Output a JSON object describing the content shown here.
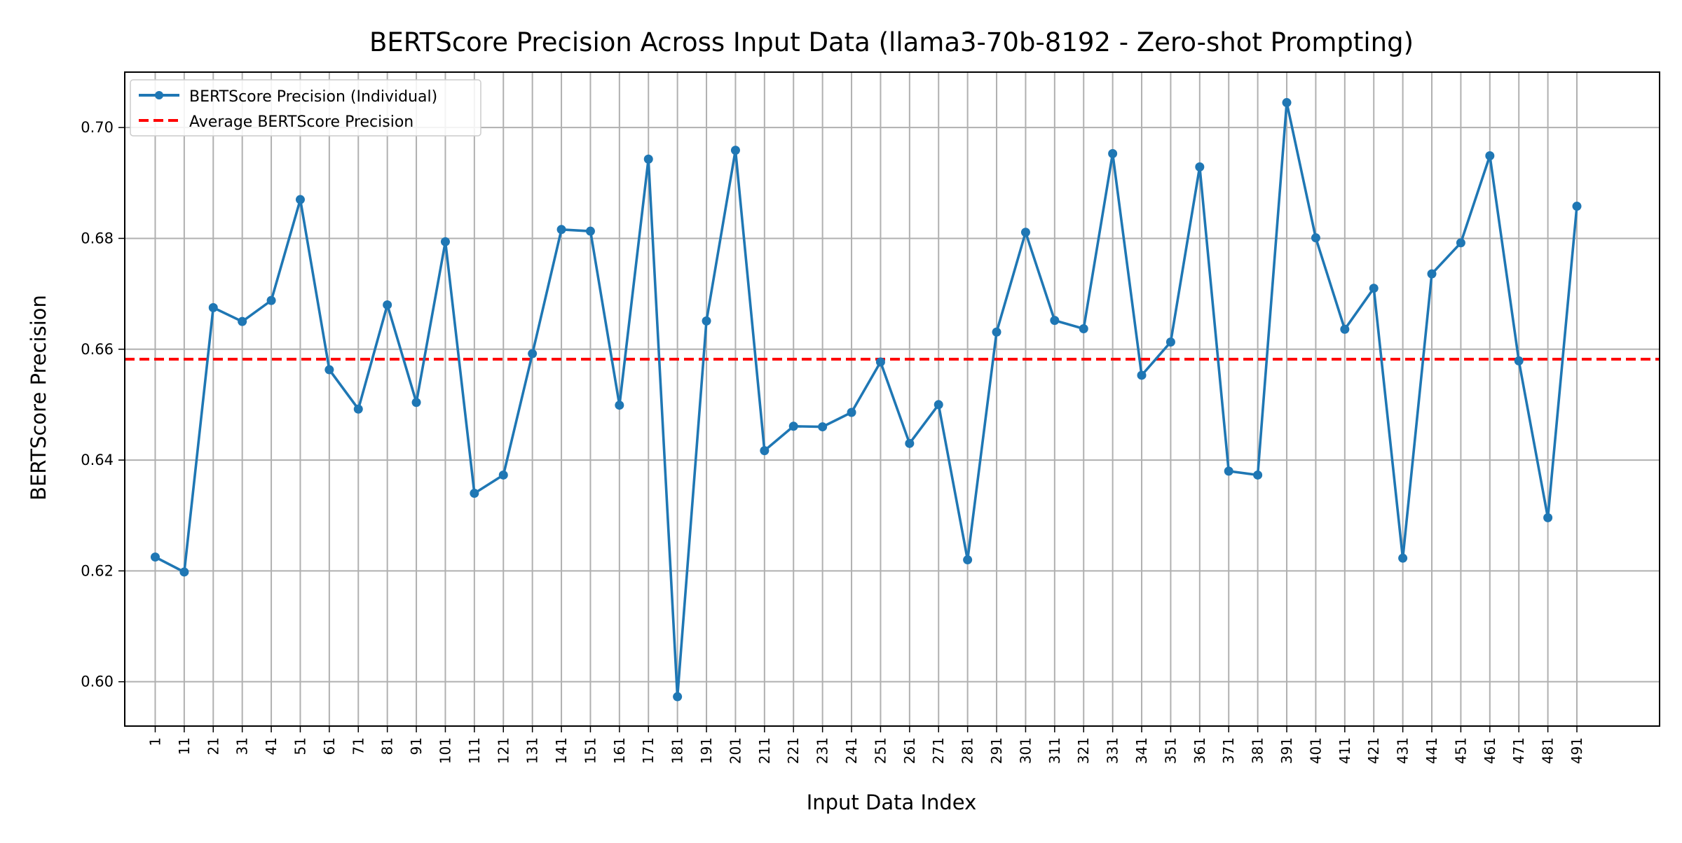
{
  "colors": {
    "series_line": "#1f77b4",
    "average_line": "#ff0000",
    "grid": "#b0b0b0",
    "axes": "#000000",
    "background": "#ffffff"
  },
  "chart_data": {
    "type": "line",
    "title": "BERTScore Precision Across Input Data (llama3-70b-8192 - Zero-shot Prompting)",
    "xlabel": "Input Data Index",
    "ylabel": "BERTScore Precision",
    "grid": true,
    "legend_position": "top-left",
    "xlim": [
      -9.5,
      519.5
    ],
    "ylim": [
      0.592,
      0.71
    ],
    "x_ticks": [
      1,
      11,
      21,
      31,
      41,
      51,
      61,
      71,
      81,
      91,
      101,
      111,
      121,
      131,
      141,
      151,
      161,
      171,
      181,
      191,
      201,
      211,
      221,
      231,
      241,
      251,
      261,
      271,
      281,
      291,
      301,
      311,
      321,
      331,
      341,
      351,
      361,
      371,
      381,
      391,
      401,
      411,
      421,
      431,
      441,
      451,
      461,
      471,
      481,
      491
    ],
    "y_ticks": [
      "0.60",
      "0.62",
      "0.64",
      "0.66",
      "0.68",
      "0.70"
    ],
    "series": [
      {
        "name": "BERTScore Precision (Individual)",
        "style": "line-with-markers",
        "x": [
          1,
          11,
          21,
          31,
          41,
          51,
          61,
          71,
          81,
          91,
          101,
          111,
          121,
          131,
          141,
          151,
          161,
          171,
          181,
          191,
          201,
          211,
          221,
          231,
          241,
          251,
          261,
          271,
          281,
          291,
          301,
          311,
          321,
          331,
          341,
          351,
          361,
          371,
          381,
          391,
          401,
          411,
          421,
          431,
          441,
          451,
          461,
          471,
          481,
          491
        ],
        "values": [
          0.6225,
          0.6198,
          0.6675,
          0.665,
          0.6688,
          0.687,
          0.6563,
          0.6492,
          0.668,
          0.6504,
          0.6794,
          0.634,
          0.6373,
          0.6592,
          0.6816,
          0.6813,
          0.6499,
          0.6943,
          0.5973,
          0.6651,
          0.6959,
          0.6417,
          0.6461,
          0.646,
          0.6486,
          0.6577,
          0.643,
          0.65,
          0.622,
          0.6631,
          0.6811,
          0.6652,
          0.6637,
          0.6953,
          0.6553,
          0.6613,
          0.6929,
          0.638,
          0.6373,
          0.7045,
          0.6801,
          0.6636,
          0.671,
          0.6223,
          0.6736,
          0.6792,
          0.6949,
          0.6579,
          0.6296,
          0.6858
        ]
      },
      {
        "name": "Average BERTScore Precision",
        "style": "dashed",
        "value": 0.6582
      }
    ]
  }
}
